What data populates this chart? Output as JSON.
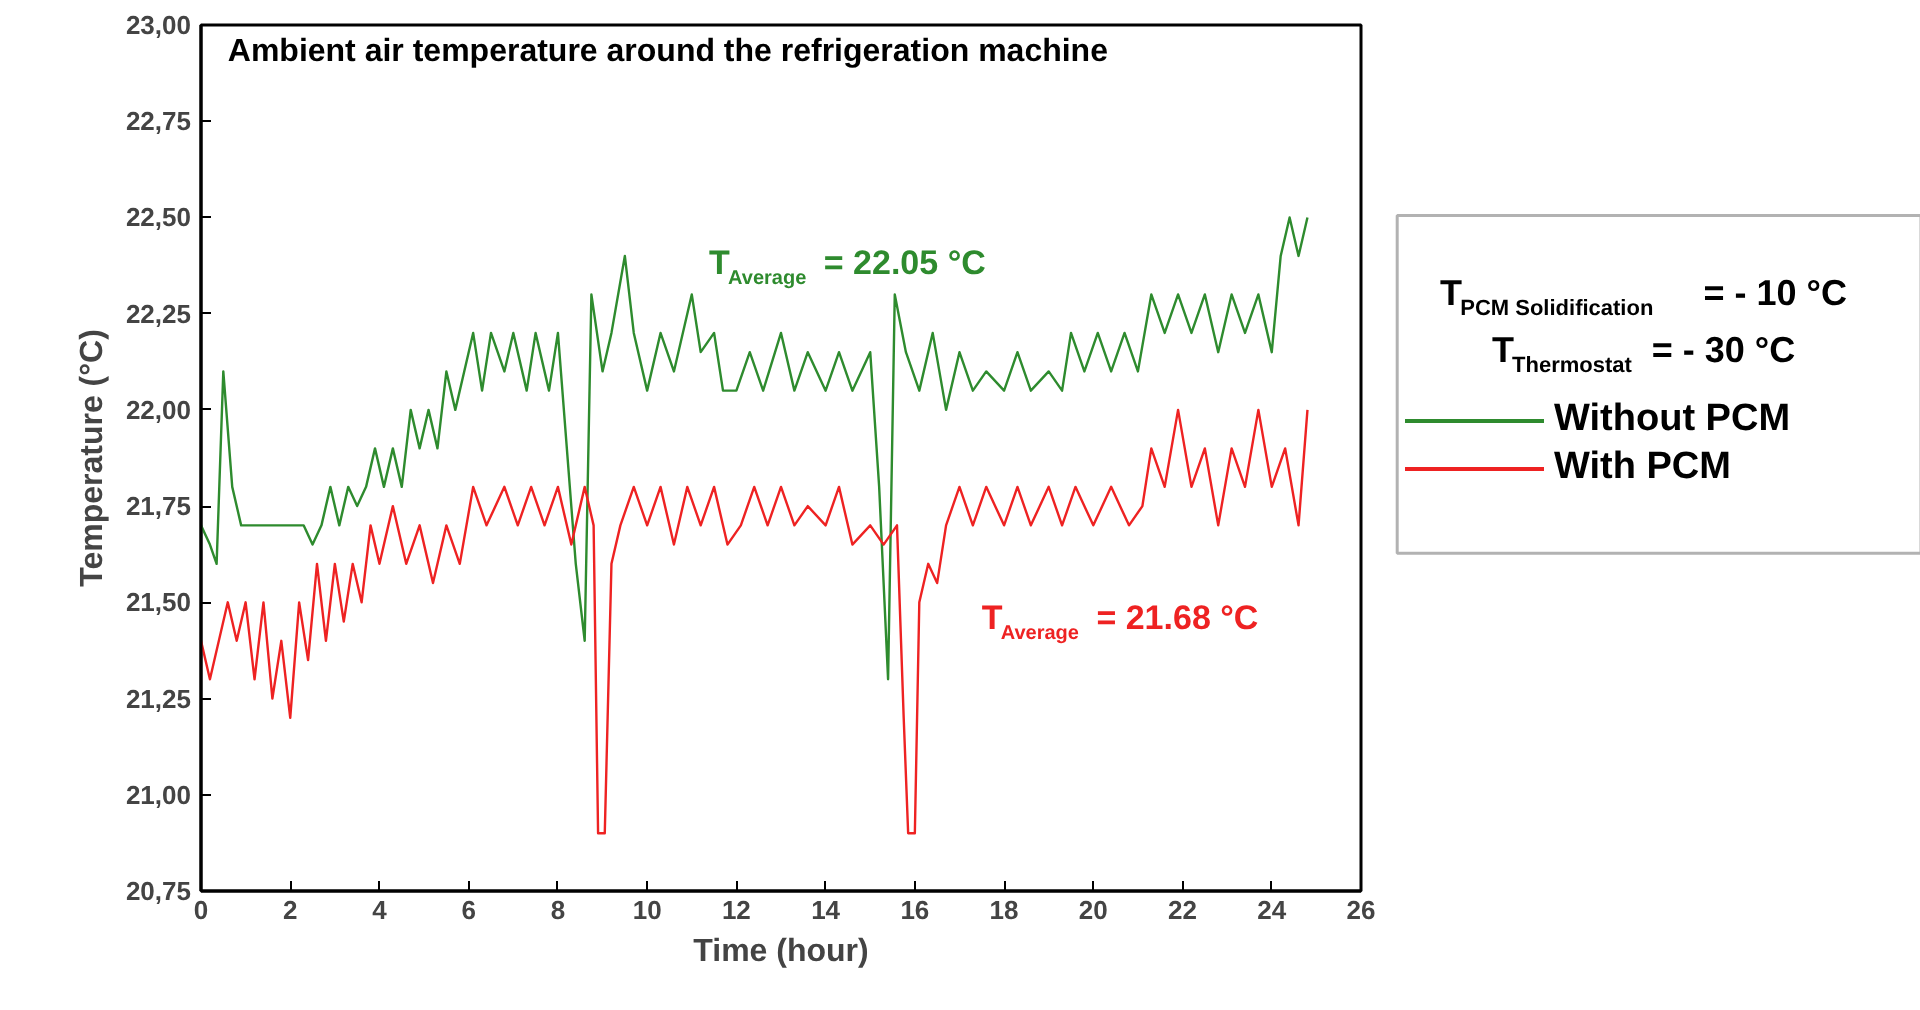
{
  "chart_data": {
    "type": "line",
    "title": "Ambient air temperature around the refrigeration machine",
    "xlabel": "Time (hour)",
    "ylabel": "Temperature (°C)",
    "xlim": [
      0,
      26
    ],
    "ylim": [
      20.75,
      23.0
    ],
    "xticks": [
      0,
      2,
      4,
      6,
      8,
      10,
      12,
      14,
      16,
      18,
      20,
      22,
      24,
      26
    ],
    "yticks": [
      {
        "value": 20.75,
        "label": "20,75"
      },
      {
        "value": 21.0,
        "label": "21,00"
      },
      {
        "value": 21.25,
        "label": "21,25"
      },
      {
        "value": 21.5,
        "label": "21,50"
      },
      {
        "value": 21.75,
        "label": "21,75"
      },
      {
        "value": 22.0,
        "label": "22,00"
      },
      {
        "value": 22.25,
        "label": "22,25"
      },
      {
        "value": 22.5,
        "label": "22,50"
      },
      {
        "value": 22.75,
        "label": "22,75"
      },
      {
        "value": 23.0,
        "label": "23,00"
      }
    ],
    "grid": false,
    "legend": "right",
    "marker": "none",
    "line_style": "solid",
    "series": [
      {
        "name": "Without PCM",
        "color": "#2e8b2e",
        "x": [
          0,
          0.2,
          0.35,
          0.5,
          0.7,
          0.9,
          1.5,
          2.3,
          2.5,
          2.7,
          2.9,
          3.1,
          3.3,
          3.5,
          3.7,
          3.9,
          4.1,
          4.3,
          4.5,
          4.7,
          4.9,
          5.1,
          5.3,
          5.5,
          5.7,
          5.9,
          6.1,
          6.3,
          6.5,
          6.8,
          7.0,
          7.3,
          7.5,
          7.8,
          8.0,
          8.2,
          8.4,
          8.6,
          8.75,
          9.0,
          9.2,
          9.5,
          9.7,
          10.0,
          10.3,
          10.6,
          11.0,
          11.2,
          11.5,
          11.7,
          12.0,
          12.3,
          12.6,
          13.0,
          13.3,
          13.6,
          14.0,
          14.3,
          14.6,
          15.0,
          15.2,
          15.4,
          15.55,
          15.8,
          16.1,
          16.4,
          16.7,
          17.0,
          17.3,
          17.6,
          18.0,
          18.3,
          18.6,
          19.0,
          19.3,
          19.5,
          19.8,
          20.1,
          20.4,
          20.7,
          21.0,
          21.3,
          21.6,
          21.9,
          22.2,
          22.5,
          22.8,
          23.1,
          23.4,
          23.7,
          24.0,
          24.2,
          24.4,
          24.6,
          24.8
        ],
        "values": [
          21.7,
          21.65,
          21.6,
          22.1,
          21.8,
          21.7,
          21.7,
          21.7,
          21.65,
          21.7,
          21.8,
          21.7,
          21.8,
          21.75,
          21.8,
          21.9,
          21.8,
          21.9,
          21.8,
          22.0,
          21.9,
          22.0,
          21.9,
          22.1,
          22.0,
          22.1,
          22.2,
          22.05,
          22.2,
          22.1,
          22.2,
          22.05,
          22.2,
          22.05,
          22.2,
          21.9,
          21.6,
          21.4,
          22.3,
          22.1,
          22.2,
          22.4,
          22.2,
          22.05,
          22.2,
          22.1,
          22.3,
          22.15,
          22.2,
          22.05,
          22.05,
          22.15,
          22.05,
          22.2,
          22.05,
          22.15,
          22.05,
          22.15,
          22.05,
          22.15,
          21.8,
          21.3,
          22.3,
          22.15,
          22.05,
          22.2,
          22.0,
          22.15,
          22.05,
          22.1,
          22.05,
          22.15,
          22.05,
          22.1,
          22.05,
          22.2,
          22.1,
          22.2,
          22.1,
          22.2,
          22.1,
          22.3,
          22.2,
          22.3,
          22.2,
          22.3,
          22.15,
          22.3,
          22.2,
          22.3,
          22.15,
          22.4,
          22.5,
          22.4,
          22.5
        ]
      },
      {
        "name": "With PCM",
        "color": "#ee2222",
        "x": [
          0,
          0.2,
          0.4,
          0.6,
          0.8,
          1.0,
          1.2,
          1.4,
          1.6,
          1.8,
          2.0,
          2.2,
          2.4,
          2.6,
          2.8,
          3.0,
          3.2,
          3.4,
          3.6,
          3.8,
          4.0,
          4.3,
          4.6,
          4.9,
          5.2,
          5.5,
          5.8,
          6.1,
          6.4,
          6.8,
          7.1,
          7.4,
          7.7,
          8.0,
          8.3,
          8.6,
          8.8,
          8.9,
          9.05,
          9.2,
          9.4,
          9.7,
          10.0,
          10.3,
          10.6,
          10.9,
          11.2,
          11.5,
          11.8,
          12.1,
          12.4,
          12.7,
          13.0,
          13.3,
          13.6,
          14.0,
          14.3,
          14.6,
          15.0,
          15.3,
          15.6,
          15.75,
          15.85,
          16.0,
          16.1,
          16.3,
          16.5,
          16.7,
          17.0,
          17.3,
          17.6,
          18.0,
          18.3,
          18.6,
          19.0,
          19.3,
          19.6,
          20.0,
          20.4,
          20.8,
          21.1,
          21.3,
          21.6,
          21.9,
          22.2,
          22.5,
          22.8,
          23.1,
          23.4,
          23.7,
          24.0,
          24.3,
          24.6,
          24.8
        ],
        "values": [
          21.4,
          21.3,
          21.4,
          21.5,
          21.4,
          21.5,
          21.3,
          21.5,
          21.25,
          21.4,
          21.2,
          21.5,
          21.35,
          21.6,
          21.4,
          21.6,
          21.45,
          21.6,
          21.5,
          21.7,
          21.6,
          21.75,
          21.6,
          21.7,
          21.55,
          21.7,
          21.6,
          21.8,
          21.7,
          21.8,
          21.7,
          21.8,
          21.7,
          21.8,
          21.65,
          21.8,
          21.7,
          20.9,
          20.9,
          21.6,
          21.7,
          21.8,
          21.7,
          21.8,
          21.65,
          21.8,
          21.7,
          21.8,
          21.65,
          21.7,
          21.8,
          21.7,
          21.8,
          21.7,
          21.75,
          21.7,
          21.8,
          21.65,
          21.7,
          21.65,
          21.7,
          21.2,
          20.9,
          20.9,
          21.5,
          21.6,
          21.55,
          21.7,
          21.8,
          21.7,
          21.8,
          21.7,
          21.8,
          21.7,
          21.8,
          21.7,
          21.8,
          21.7,
          21.8,
          21.7,
          21.75,
          21.9,
          21.8,
          22.0,
          21.8,
          21.9,
          21.7,
          21.9,
          21.8,
          22.0,
          21.8,
          21.9,
          21.7,
          22.0
        ]
      }
    ],
    "annotations": [
      "T$_{Average}$ = 22.05 °C",
      "T$_{Average}$ = 21.68 °C",
      "T$_{PCM Solidification}$ = - 10 °C",
      "T$_{Thermostat}$ = - 30 °C"
    ]
  }
}
